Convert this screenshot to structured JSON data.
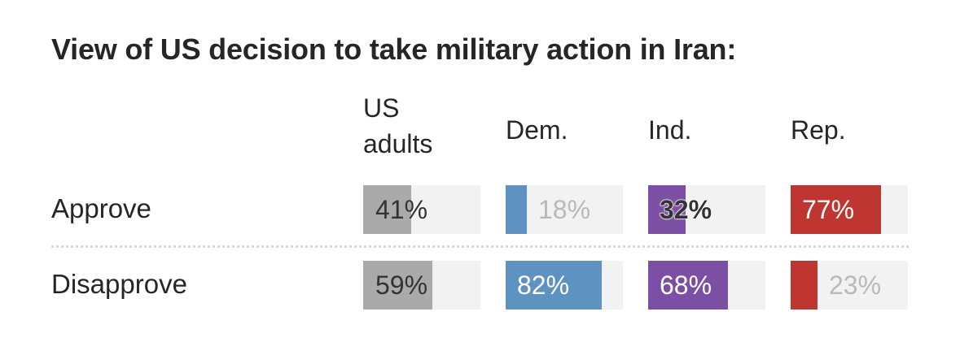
{
  "chart_data": {
    "type": "bar",
    "title": "View of US decision to take military action in Iran:",
    "groups": [
      {
        "label": "US adults",
        "color": "#aaaaaa"
      },
      {
        "label": "Dem.",
        "color": "#5e92c1"
      },
      {
        "label": "Ind.",
        "color": "#7b4fa3"
      },
      {
        "label": "Rep.",
        "color": "#bf352f"
      }
    ],
    "categories": [
      "Approve",
      "Disapprove"
    ],
    "series": [
      {
        "values": [
          41,
          59
        ],
        "labels": [
          "41%",
          "59%"
        ]
      },
      {
        "values": [
          18,
          82
        ],
        "labels": [
          "18%",
          "82%"
        ]
      },
      {
        "values": [
          32,
          68
        ],
        "labels": [
          "32%",
          "68%"
        ]
      },
      {
        "values": [
          77,
          23
        ],
        "labels": [
          "77%",
          "23%"
        ]
      }
    ],
    "ylim": [
      0,
      100
    ],
    "grid": false,
    "legend": "none"
  }
}
